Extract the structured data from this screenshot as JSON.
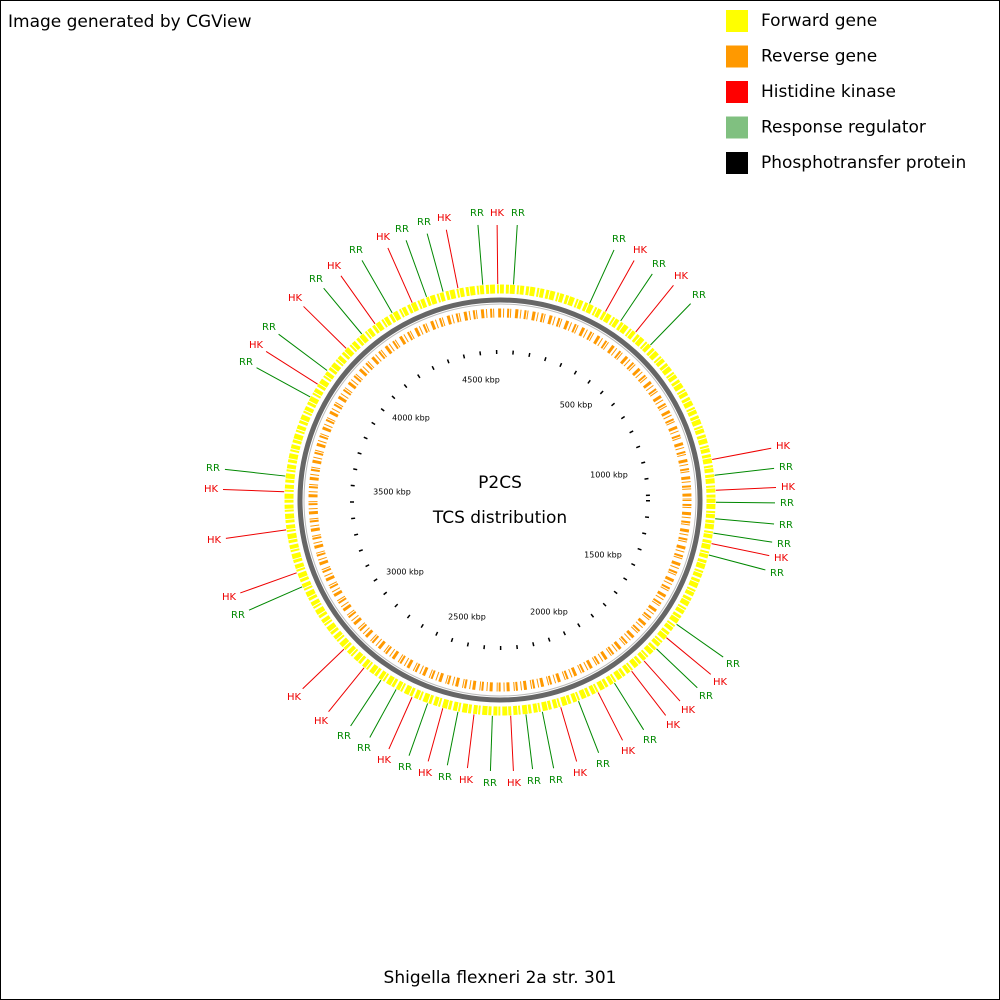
{
  "header": {
    "credit": "Image generated by CGView"
  },
  "legend": [
    {
      "label": "Forward gene",
      "color": "#ffff00"
    },
    {
      "label": "Reverse gene",
      "color": "#ff9900"
    },
    {
      "label": "Histidine kinase",
      "color": "#ff0000"
    },
    {
      "label": "Response regulator",
      "color": "#80c080"
    },
    {
      "label": "Phosphotransfer protein",
      "color": "#000000"
    }
  ],
  "center": {
    "title": "P2CS",
    "subtitle": "TCS distribution"
  },
  "footer": {
    "organism": "Shigella flexneri 2a str. 301"
  },
  "scale_labels": [
    "500 kbp",
    "1000 kbp",
    "1500 kbp",
    "2000 kbp",
    "2500 kbp",
    "3000 kbp",
    "3500 kbp",
    "4000 kbp",
    "4500 kbp"
  ],
  "feature_labels": [
    "RR",
    "HK",
    "RR",
    "RR",
    "HK",
    "RR",
    "HK",
    "RR",
    "HK",
    "RR",
    "HK",
    "RR",
    "RR",
    "RR",
    "HK",
    "RR",
    "RR",
    "HK",
    "RR",
    "HK",
    "HK",
    "RR",
    "HK",
    "RR",
    "HK",
    "RR",
    "RR",
    "HK",
    "RR",
    "HK",
    "RR",
    "HK",
    "RR",
    "HK",
    "RR",
    "RR",
    "HK",
    "HK",
    "RR",
    "HK",
    "HK",
    "HK",
    "RR",
    "RR",
    "HK",
    "RR",
    "HK",
    "RR",
    "HK",
    "RR",
    "HK",
    "RR",
    "RR",
    "HK"
  ]
}
